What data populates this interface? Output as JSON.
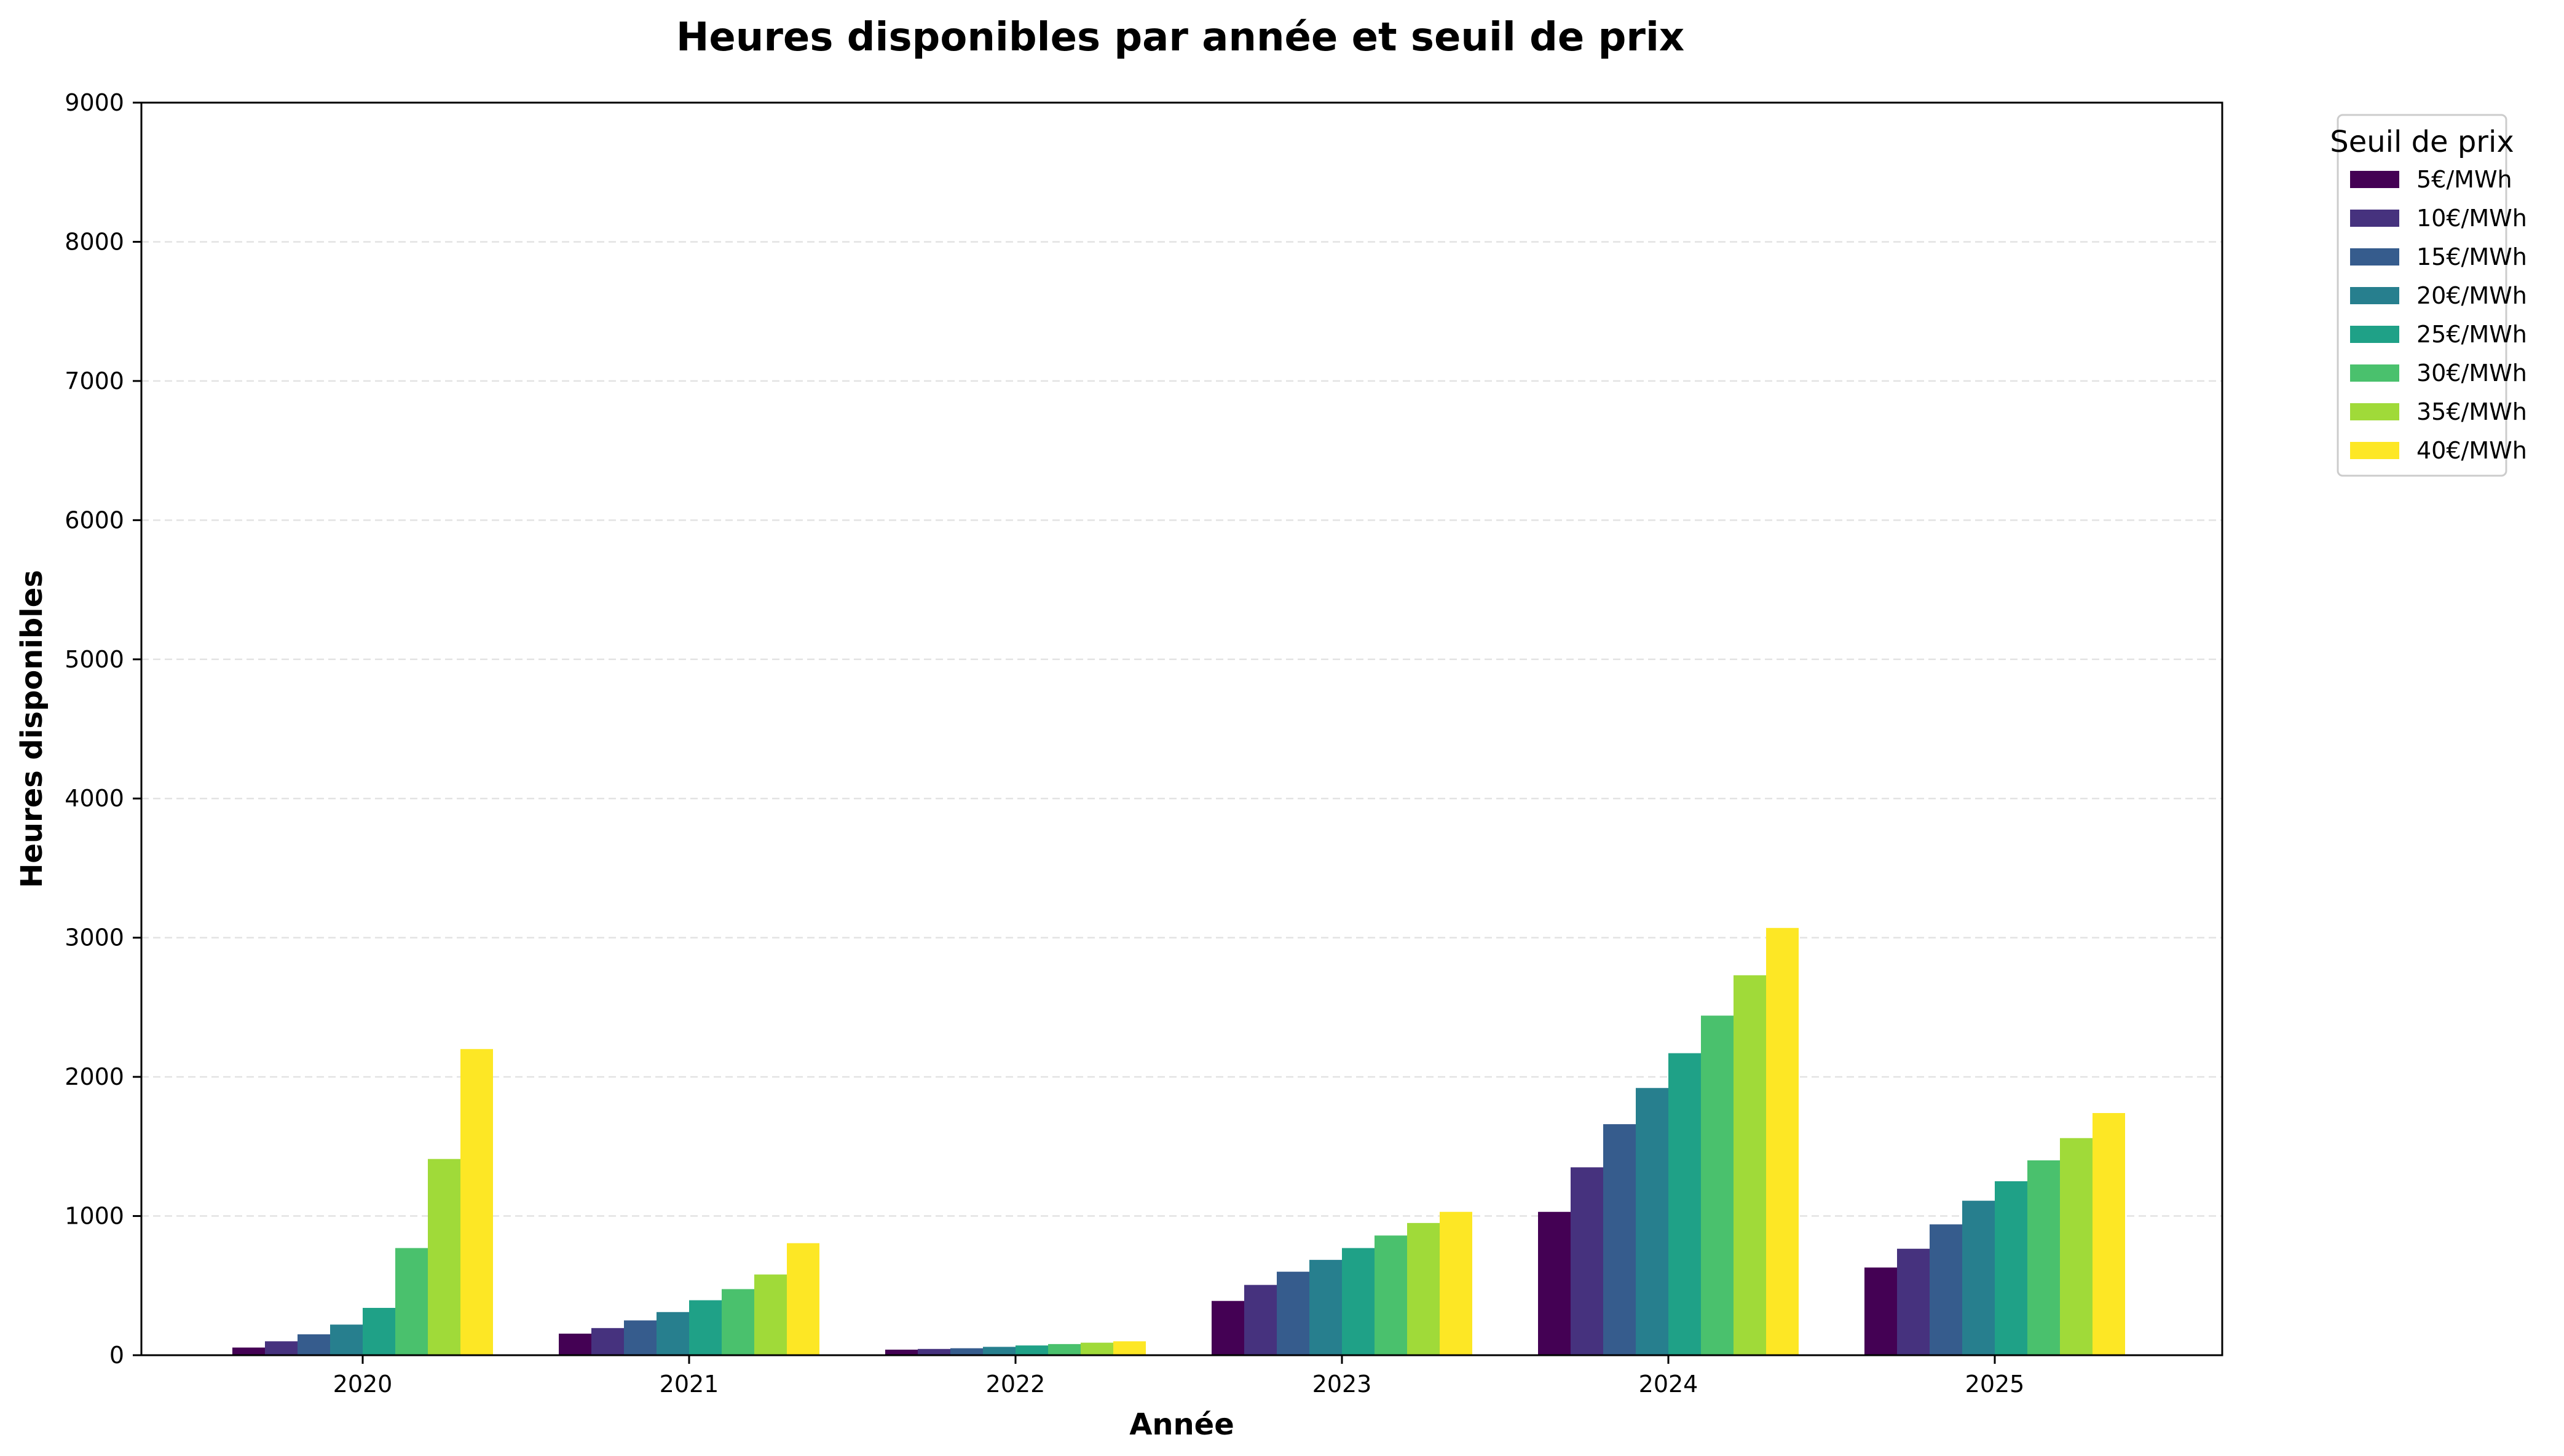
{
  "chart_data": {
    "type": "bar",
    "title": "Heures disponibles par année et seuil de prix",
    "xlabel": "Année",
    "ylabel": "Heures disponibles",
    "ylim": [
      0,
      9000
    ],
    "yticks": [
      0,
      1000,
      2000,
      3000,
      4000,
      5000,
      6000,
      7000,
      8000,
      9000
    ],
    "grid": "y, dashed",
    "legend": {
      "title": "Seuil de prix",
      "placement": "outside-right-top"
    },
    "categories": [
      "2020",
      "2021",
      "2022",
      "2023",
      "2024",
      "2025"
    ],
    "series": [
      {
        "name": "5€/MWh",
        "color": "#440154",
        "values": [
          55,
          155,
          40,
          390,
          1030,
          630
        ]
      },
      {
        "name": "10€/MWh",
        "color": "#46327e",
        "values": [
          100,
          195,
          45,
          505,
          1350,
          765
        ]
      },
      {
        "name": "15€/MWh",
        "color": "#365c8d",
        "values": [
          150,
          250,
          50,
          600,
          1660,
          940
        ]
      },
      {
        "name": "20€/MWh",
        "color": "#277f8e",
        "values": [
          220,
          310,
          60,
          685,
          1920,
          1110
        ]
      },
      {
        "name": "25€/MWh",
        "color": "#1fa187",
        "values": [
          340,
          395,
          70,
          770,
          2170,
          1250
        ]
      },
      {
        "name": "30€/MWh",
        "color": "#4ac16d",
        "values": [
          770,
          475,
          80,
          860,
          2440,
          1400
        ]
      },
      {
        "name": "35€/MWh",
        "color": "#a0da39",
        "values": [
          1410,
          580,
          90,
          950,
          2730,
          1560
        ]
      },
      {
        "name": "40€/MWh",
        "color": "#fde725",
        "values": [
          2200,
          805,
          100,
          1030,
          3070,
          1740
        ]
      }
    ]
  }
}
